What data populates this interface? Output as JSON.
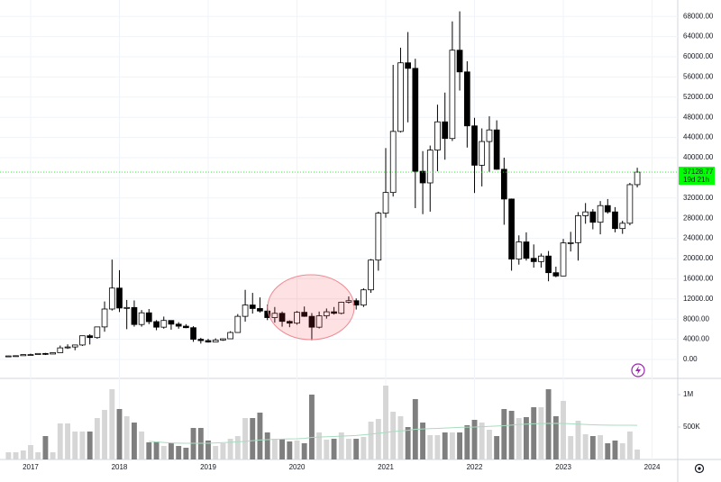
{
  "chart_data": {
    "type": "candlestick",
    "x": [
      2016.75,
      2016.833,
      2016.917,
      2017,
      2017.083,
      2017.167,
      2017.25,
      2017.333,
      2017.417,
      2017.5,
      2017.583,
      2017.667,
      2017.75,
      2017.833,
      2017.917,
      2018,
      2018.083,
      2018.167,
      2018.25,
      2018.333,
      2018.417,
      2018.5,
      2018.583,
      2018.667,
      2018.75,
      2018.833,
      2018.917,
      2019,
      2019.083,
      2019.167,
      2019.25,
      2019.333,
      2019.417,
      2019.5,
      2019.583,
      2019.667,
      2019.75,
      2019.833,
      2019.917,
      2020,
      2020.083,
      2020.167,
      2020.25,
      2020.333,
      2020.417,
      2020.5,
      2020.583,
      2020.667,
      2020.75,
      2020.833,
      2020.917,
      2021,
      2021.083,
      2021.167,
      2021.25,
      2021.333,
      2021.417,
      2021.5,
      2021.583,
      2021.667,
      2021.75,
      2021.833,
      2021.917,
      2022,
      2022.083,
      2022.167,
      2022.25,
      2022.333,
      2022.417,
      2022.5,
      2022.583,
      2022.667,
      2022.75,
      2022.833,
      2022.917,
      2023,
      2023.083,
      2023.167,
      2023.25,
      2023.333,
      2023.417,
      2023.5,
      2023.583,
      2023.667,
      2023.75,
      2023.833
    ],
    "open": [
      610,
      700,
      745,
      965,
      970,
      1190,
      1080,
      1350,
      2300,
      2480,
      2870,
      4700,
      4340,
      6450,
      10000,
      14150,
      10200,
      10300,
      6930,
      9250,
      7500,
      6400,
      7730,
      7000,
      6600,
      6300,
      4000,
      3740,
      3450,
      3850,
      4100,
      5350,
      8550,
      10800,
      10100,
      9600,
      8300,
      9150,
      7550,
      7200,
      9350,
      8550,
      6400,
      8650,
      9450,
      9150,
      11350,
      11650,
      10780,
      13800,
      19700,
      29000,
      33100,
      45200,
      58800,
      57700,
      37300,
      35000,
      41500,
      47100,
      43800,
      61300,
      57000,
      46300,
      38500,
      43200,
      45500,
      37700,
      31800,
      19900,
      23300,
      20050,
      19400,
      20500,
      17200,
      16550,
      23100,
      23150,
      28500,
      29250,
      27200,
      30500,
      29250,
      25950,
      27000,
      34650
    ],
    "high": [
      740,
      760,
      980,
      1150,
      1200,
      1300,
      1350,
      2760,
      3000,
      2950,
      4750,
      5000,
      6470,
      11500,
      19800,
      17700,
      11800,
      11700,
      9800,
      10000,
      7800,
      8500,
      7760,
      7400,
      7000,
      6600,
      4300,
      4100,
      4200,
      4150,
      5600,
      9000,
      13800,
      13200,
      12300,
      10900,
      10400,
      9500,
      7750,
      9600,
      10500,
      9200,
      9500,
      10100,
      10400,
      11450,
      12500,
      12100,
      14100,
      19900,
      29300,
      41900,
      58400,
      61800,
      64900,
      59600,
      41300,
      42400,
      50500,
      52900,
      67000,
      69000,
      59100,
      47900,
      45800,
      48200,
      47400,
      40000,
      31900,
      24600,
      25200,
      22800,
      21000,
      21500,
      18400,
      23900,
      25300,
      29200,
      31000,
      29800,
      31400,
      31800,
      30200,
      27500,
      35000,
      38000
    ],
    "low": [
      600,
      690,
      740,
      750,
      940,
      890,
      1080,
      1350,
      2100,
      1830,
      2670,
      2970,
      4100,
      5500,
      9700,
      9400,
      6000,
      6500,
      6500,
      7000,
      5800,
      6100,
      5900,
      6100,
      6200,
      3500,
      3150,
      3350,
      3400,
      3700,
      4100,
      5300,
      7500,
      9100,
      9300,
      7800,
      7300,
      6500,
      6400,
      6900,
      8450,
      3800,
      6150,
      8100,
      8900,
      8950,
      11100,
      9900,
      10400,
      13200,
      17600,
      28100,
      32300,
      45000,
      47000,
      30000,
      28800,
      29300,
      37300,
      39600,
      43300,
      53300,
      42000,
      33000,
      34300,
      37200,
      37600,
      26700,
      17600,
      18800,
      19600,
      18200,
      18200,
      15500,
      16300,
      16500,
      21400,
      19600,
      26900,
      25800,
      24800,
      28900,
      25200,
      24900,
      26600,
      34100
    ],
    "close": [
      700,
      745,
      965,
      970,
      1190,
      1080,
      1350,
      2300,
      2480,
      2870,
      4700,
      4340,
      6450,
      10000,
      14150,
      10200,
      10300,
      6930,
      9250,
      7500,
      6400,
      7730,
      7000,
      6600,
      6300,
      4000,
      3740,
      3450,
      3850,
      4100,
      5350,
      8550,
      10800,
      10100,
      9600,
      8300,
      9150,
      7550,
      7200,
      9350,
      8550,
      6400,
      8650,
      9450,
      9150,
      11350,
      11650,
      10780,
      13800,
      19700,
      29000,
      33100,
      45200,
      58800,
      57700,
      37300,
      35000,
      41500,
      47100,
      43800,
      61300,
      57000,
      46300,
      38500,
      43200,
      45500,
      37700,
      31800,
      19900,
      23300,
      20050,
      19400,
      20500,
      17200,
      16550,
      23100,
      23150,
      28500,
      29250,
      27200,
      30500,
      29250,
      25950,
      27000,
      34650,
      37128.77
    ],
    "volume": [
      111000,
      111000,
      139000,
      222000,
      111000,
      361000,
      111000,
      556000,
      556000,
      431000,
      431000,
      431000,
      639000,
      764000,
      1083000,
      778000,
      667000,
      569000,
      431000,
      264000,
      278000,
      208000,
      250000,
      208000,
      181000,
      486000,
      486000,
      292000,
      208000,
      250000,
      319000,
      361000,
      639000,
      639000,
      722000,
      417000,
      319000,
      319000,
      278000,
      292000,
      250000,
      1000000,
      417000,
      306000,
      319000,
      417000,
      319000,
      319000,
      347000,
      583000,
      625000,
      1139000,
      736000,
      667000,
      500000,
      931000,
      569000,
      375000,
      375000,
      417000,
      417000,
      417000,
      528000,
      611000,
      569000,
      458000,
      361000,
      778000,
      750000,
      639000,
      653000,
      806000,
      806000,
      1083000,
      667000,
      903000,
      361000,
      597000,
      389000,
      361000,
      375000,
      250000,
      292000,
      250000,
      431000,
      153000
    ],
    "volume_ma": [
      null,
      null,
      null,
      null,
      null,
      null,
      null,
      null,
      null,
      null,
      null,
      null,
      null,
      null,
      null,
      null,
      null,
      null,
      null,
      280000,
      270000,
      262000,
      256000,
      252000,
      250000,
      250000,
      250000,
      250000,
      255000,
      260000,
      265000,
      272000,
      280000,
      290000,
      300000,
      305000,
      310000,
      315000,
      318000,
      319000,
      325000,
      340000,
      345000,
      350000,
      355000,
      360000,
      365000,
      370000,
      380000,
      390000,
      405000,
      417000,
      430000,
      440000,
      450000,
      465000,
      470000,
      475000,
      480000,
      485000,
      490000,
      495000,
      498000,
      500000,
      505000,
      510000,
      515000,
      520000,
      530000,
      540000,
      545000,
      550000,
      553000,
      556000,
      558000,
      556000,
      550000,
      545000,
      540000,
      535000,
      532000,
      530000,
      528000,
      528000,
      527000,
      526000
    ],
    "up_color": "#ffffff",
    "down_color": "#000000",
    "outline_color": "#000000",
    "volume_up_color": "#d6d6d6",
    "volume_down_color": "#7f7f7f",
    "volume_ma_color": "#a8dcc0",
    "xlim": [
      2016.655,
      2024.289
    ],
    "xticks": [
      2017,
      2018,
      2019,
      2020,
      2021,
      2022,
      2023,
      2024
    ],
    "ylim": [
      -3750,
      71250
    ],
    "yticks": [
      {
        "value": 0,
        "label": "0.00"
      },
      {
        "value": 4000,
        "label": "4000.00"
      },
      {
        "value": 8000,
        "label": "8000.00"
      },
      {
        "value": 12000,
        "label": "12000.00"
      },
      {
        "value": 16000,
        "label": "16000.00"
      },
      {
        "value": 20000,
        "label": "20000.00"
      },
      {
        "value": 24000,
        "label": "24000.00"
      },
      {
        "value": 28000,
        "label": "28000.00"
      },
      {
        "value": 32000,
        "label": "32000.00"
      },
      {
        "value": 36000,
        "label": "36000.00"
      },
      {
        "value": 40000,
        "label": "40000.00"
      },
      {
        "value": 44000,
        "label": "44000.00"
      },
      {
        "value": 48000,
        "label": "48000.00"
      },
      {
        "value": 52000,
        "label": "52000.00"
      },
      {
        "value": 56000,
        "label": "56000.00"
      },
      {
        "value": 60000,
        "label": "60000.00"
      },
      {
        "value": 64000,
        "label": "64000.00"
      },
      {
        "value": 68000,
        "label": "68000.00"
      }
    ],
    "volume_lim": [
      0,
      1250000
    ],
    "volume_ticks": [
      {
        "value": 500000,
        "label": "500K"
      },
      {
        "value": 1000000,
        "label": "1M"
      }
    ],
    "last_price": {
      "value": 37128.77,
      "label": "37128.77",
      "countdown": "19d 21h",
      "color": "#00ff00"
    },
    "grid": true
  }
}
